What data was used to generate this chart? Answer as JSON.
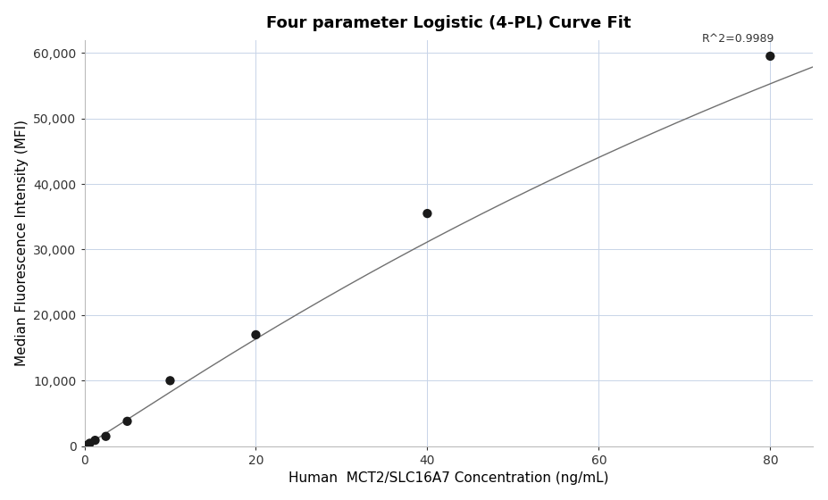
{
  "title": "Four parameter Logistic (4-PL) Curve Fit",
  "xlabel": "Human  MCT2/SLC16A7 Concentration (ng/mL)",
  "ylabel": "Median Fluorescence Intensity (MFI)",
  "r_squared_label": "R^2=0.9989",
  "scatter_x": [
    0.3125,
    0.625,
    1.25,
    2.5,
    5.0,
    10.0,
    20.0,
    40.0,
    80.0
  ],
  "scatter_y": [
    150,
    450,
    900,
    1500,
    3800,
    10000,
    17000,
    35500,
    59500
  ],
  "xlim": [
    0,
    85
  ],
  "ylim": [
    0,
    62000
  ],
  "xticks": [
    0,
    20,
    40,
    60,
    80
  ],
  "yticks": [
    0,
    10000,
    20000,
    30000,
    40000,
    50000,
    60000
  ],
  "ytick_labels": [
    "0",
    "10,000",
    "20,000",
    "30,000",
    "40,000",
    "50,000",
    "60,000"
  ],
  "dot_color": "#1a1a1a",
  "line_color": "#707070",
  "grid_color": "#c8d4e8",
  "bg_color": "#ffffff",
  "title_fontsize": 13,
  "label_fontsize": 11,
  "tick_fontsize": 10,
  "annotation_fontsize": 9,
  "dot_size": 55
}
